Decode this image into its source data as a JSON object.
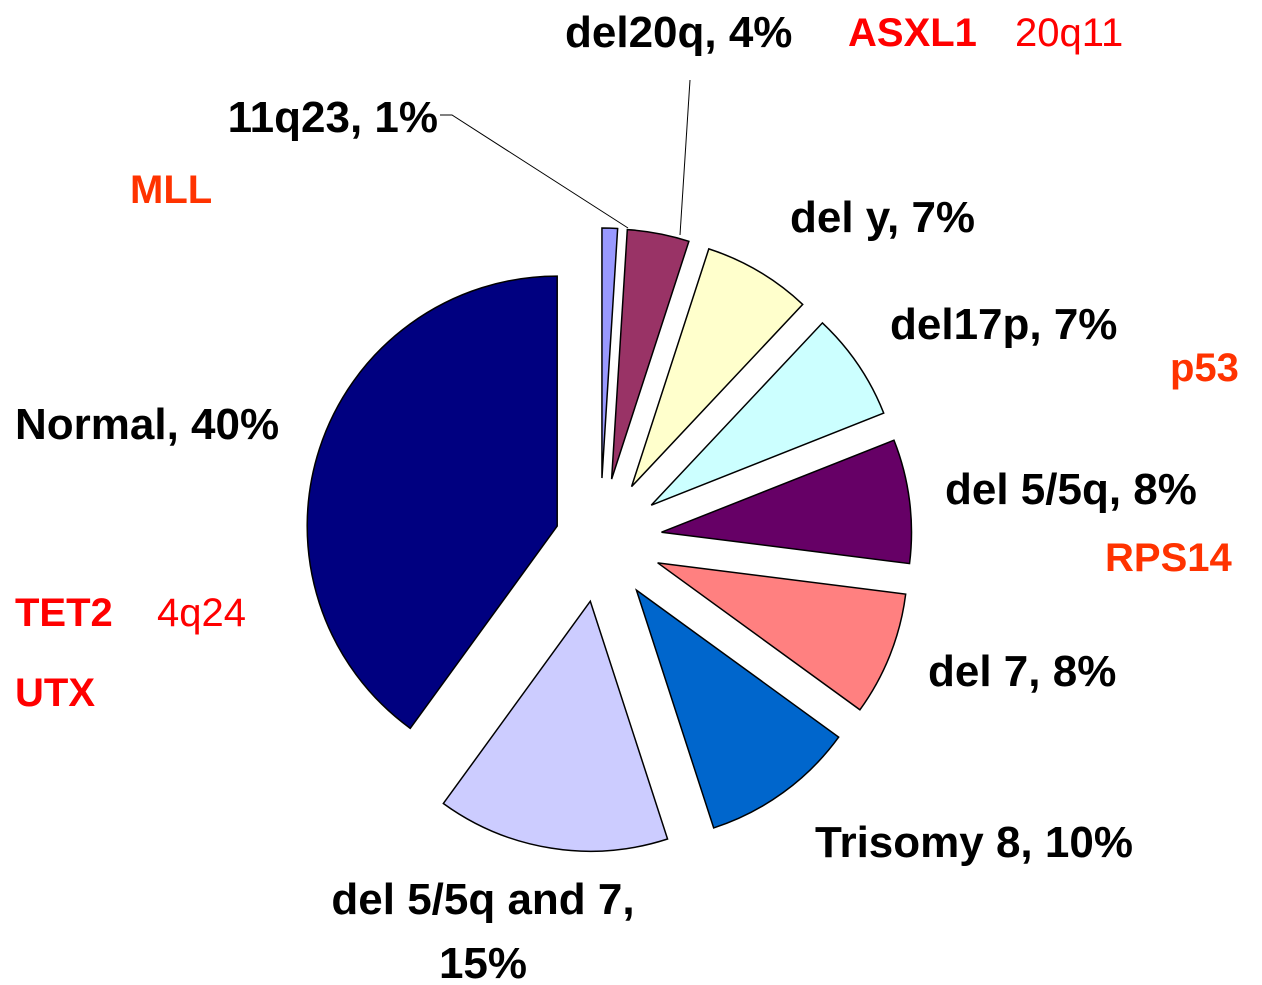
{
  "chart_data": {
    "type": "pie",
    "categories": [
      "11q23, 1%",
      "del20q, 4%",
      "del y, 7%",
      "del17p, 7%",
      "del 5/5q, 8%",
      "del 7, 8%",
      "Trisomy 8, 10%",
      "del 5/5q and 7, 15%",
      "Normal, 40%"
    ],
    "values": [
      1,
      4,
      7,
      7,
      8,
      8,
      10,
      15,
      40
    ],
    "colors": [
      "#9999ff",
      "#993366",
      "#ffffcc",
      "#ccffff",
      "#660066",
      "#ff8080",
      "#0066cc",
      "#ccccff",
      "#000080"
    ],
    "annotations": [
      {
        "text": "MLL",
        "color": "#ff3300"
      },
      {
        "text": "ASXL1",
        "color": "#ff0000"
      },
      {
        "text": "20q11",
        "color": "#ff0000"
      },
      {
        "text": "p53",
        "color": "#ff3300"
      },
      {
        "text": "RPS14",
        "color": "#ff3300"
      },
      {
        "text": "TET2",
        "color": "#ff0000"
      },
      {
        "text": "4q24",
        "color": "#ff0000"
      },
      {
        "text": "UTX",
        "color": "#ff0000"
      }
    ]
  }
}
